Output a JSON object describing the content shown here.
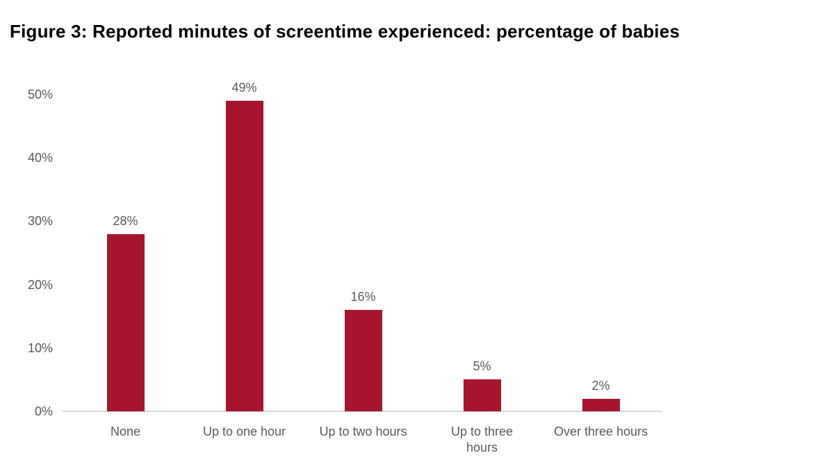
{
  "figure": {
    "title": "Figure 3: Reported minutes of screentime experienced: percentage of babies"
  },
  "chart_data": {
    "type": "bar",
    "title": "Figure 3: Reported minutes of screentime experienced: percentage of babies",
    "categories": [
      "None",
      "Up to one hour",
      "Up to two hours",
      "Up to three hours",
      "Over three hours"
    ],
    "values": [
      28,
      49,
      16,
      5,
      2
    ],
    "data_labels": [
      "28%",
      "49%",
      "16%",
      "5%",
      "2%"
    ],
    "tick_label_lines": [
      [
        "None"
      ],
      [
        "Up to one hour"
      ],
      [
        "Up to two hours"
      ],
      [
        "Up to three",
        "hours"
      ],
      [
        "Over three hours"
      ]
    ],
    "yticks": [
      0,
      10,
      20,
      30,
      40,
      50
    ],
    "ytick_labels": [
      "0%",
      "10%",
      "20%",
      "30%",
      "40%",
      "50%"
    ],
    "ylim": [
      0,
      50
    ],
    "xlabel": "",
    "ylabel": "",
    "grid": false,
    "legend": false,
    "colors": {
      "bar": "#A6142E",
      "axis_line": "#D9D9D9",
      "tick_label": "#595959",
      "data_label": "#595959",
      "title": "#000000"
    }
  }
}
